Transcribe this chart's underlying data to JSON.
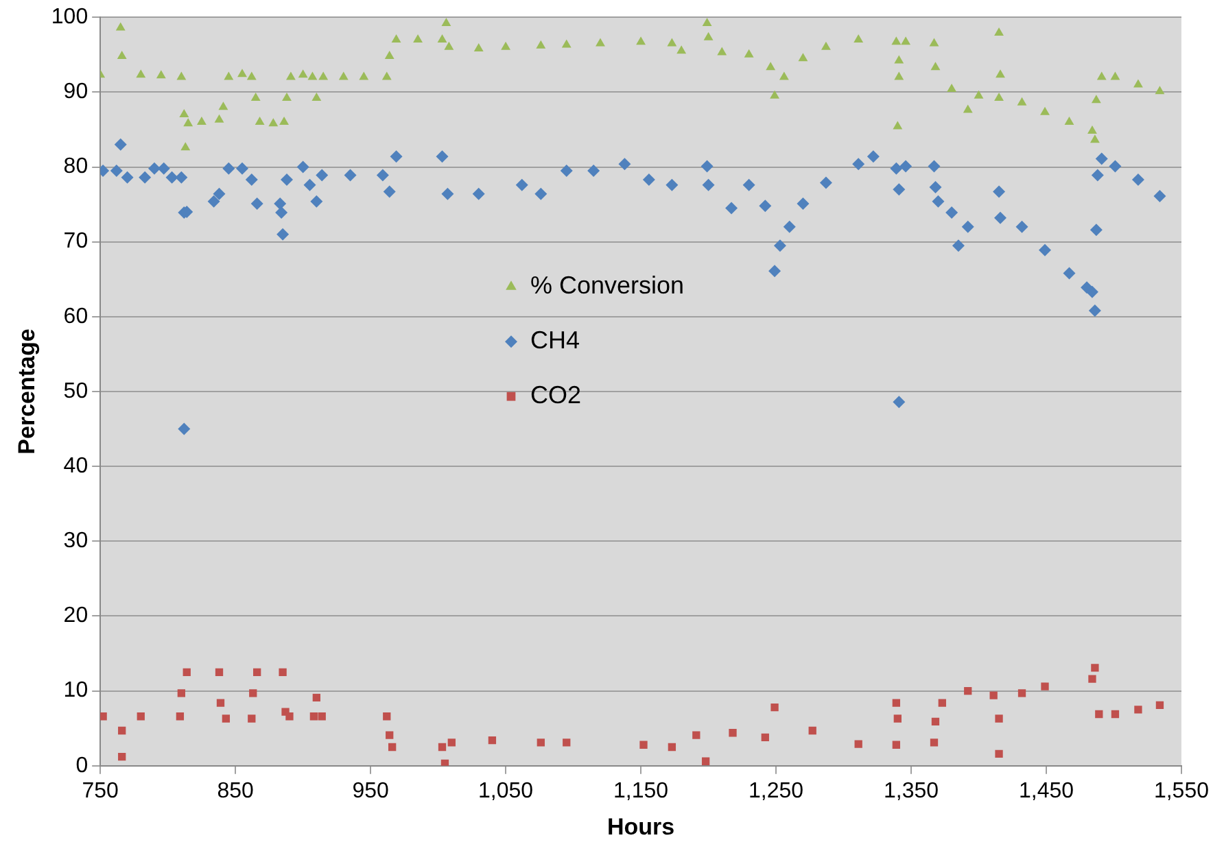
{
  "chart_data": {
    "type": "scatter",
    "xlabel": "Hours",
    "ylabel": "Percentage",
    "xlim": [
      750,
      1550
    ],
    "ylim": [
      0,
      100
    ],
    "xticks": [
      750,
      850,
      950,
      {
        "value": 1050,
        "label": "1,050"
      },
      {
        "value": 1150,
        "label": "1,150"
      },
      {
        "value": 1250,
        "label": "1,250"
      },
      {
        "value": 1350,
        "label": "1,350"
      },
      {
        "value": 1450,
        "label": "1,450"
      },
      {
        "value": 1550,
        "label": "1,550"
      }
    ],
    "yticks": [
      0,
      10,
      20,
      30,
      40,
      50,
      60,
      70,
      80,
      90,
      100
    ],
    "grid": "y",
    "legend": "center",
    "series": [
      {
        "name": "% Conversion",
        "color": "#9bbb59",
        "marker": "triangle",
        "x": [
          750,
          765,
          766,
          780,
          795,
          810,
          812,
          813,
          815,
          825,
          838,
          841,
          845,
          855,
          862,
          865,
          868,
          878,
          886,
          888,
          891,
          900,
          907,
          910,
          915,
          930,
          945,
          962,
          964,
          969,
          985,
          1003,
          1006,
          1008,
          1030,
          1050,
          1076,
          1095,
          1120,
          1150,
          1173,
          1180,
          1199,
          1200,
          1210,
          1230,
          1246,
          1249,
          1256,
          1270,
          1287,
          1311,
          1339,
          1341,
          1341,
          1340,
          1346,
          1367,
          1368,
          1380,
          1392,
          1400,
          1415,
          1415,
          1416,
          1432,
          1449,
          1467,
          1484,
          1486,
          1487,
          1491,
          1501,
          1518,
          1534
        ],
        "values": [
          92.3,
          98.6,
          94.8,
          92.3,
          92.2,
          92,
          87,
          82.6,
          85.8,
          86,
          86.3,
          88,
          92,
          92.4,
          92,
          89.2,
          86,
          85.8,
          86,
          89.2,
          92,
          92.3,
          92,
          89.2,
          92,
          92,
          92,
          92,
          94.8,
          97,
          97,
          97,
          99.2,
          96,
          95.8,
          96,
          96.2,
          96.3,
          96.5,
          96.7,
          96.5,
          95.5,
          99.2,
          97.3,
          95.3,
          95,
          93.3,
          89.5,
          92,
          94.5,
          96,
          97,
          96.7,
          94.2,
          92,
          85.4,
          96.7,
          96.5,
          93.3,
          90.4,
          87.6,
          89.5,
          89.2,
          97.9,
          92.3,
          88.6,
          87.3,
          86,
          84.8,
          83.6,
          88.9,
          92,
          92,
          91,
          90.1
        ]
      },
      {
        "name": "CH4",
        "color": "#4f81bd",
        "marker": "diamond",
        "x": [
          752,
          762,
          765,
          770,
          783,
          790,
          797,
          803,
          810,
          812,
          812,
          814,
          834,
          838,
          845,
          855,
          862,
          866,
          883,
          884,
          885,
          888,
          900,
          905,
          910,
          914,
          935,
          959,
          964,
          969,
          1003,
          1007,
          1030,
          1062,
          1076,
          1095,
          1115,
          1138,
          1156,
          1173,
          1199,
          1200,
          1217,
          1230,
          1242,
          1249,
          1253,
          1260,
          1270,
          1287,
          1311,
          1322,
          1339,
          1341,
          1341,
          1346,
          1367,
          1368,
          1370,
          1380,
          1385,
          1392,
          1415,
          1416,
          1432,
          1449,
          1467,
          1480,
          1484,
          1486,
          1487,
          1488,
          1491,
          1501,
          1518,
          1534
        ],
        "values": [
          79.5,
          79.5,
          83,
          78.6,
          78.6,
          79.8,
          79.8,
          78.6,
          78.6,
          73.9,
          45,
          74,
          75.4,
          76.4,
          79.8,
          79.8,
          78.3,
          75.1,
          75.1,
          73.9,
          71,
          78.3,
          80,
          77.6,
          75.4,
          78.9,
          78.9,
          78.9,
          76.7,
          81.4,
          81.4,
          76.4,
          76.4,
          77.6,
          76.4,
          79.5,
          79.5,
          80.4,
          78.3,
          77.6,
          80.1,
          77.6,
          74.5,
          77.6,
          74.8,
          66.1,
          69.5,
          72,
          75.1,
          77.9,
          80.4,
          81.4,
          79.8,
          77,
          48.6,
          80.1,
          80.1,
          77.3,
          75.4,
          73.9,
          69.5,
          72,
          76.7,
          73.2,
          72,
          68.9,
          65.8,
          63.9,
          63.3,
          60.8,
          71.6,
          78.9,
          81.1,
          80.1,
          78.3,
          76.1
        ]
      },
      {
        "name": "CO2",
        "color": "#c0504d",
        "marker": "square",
        "x": [
          752,
          766,
          766,
          780,
          809,
          810,
          814,
          838,
          839,
          843,
          862,
          863,
          866,
          885,
          887,
          890,
          908,
          910,
          914,
          962,
          964,
          966,
          1003,
          1005,
          1010,
          1040,
          1076,
          1095,
          1152,
          1173,
          1191,
          1198,
          1218,
          1242,
          1249,
          1277,
          1311,
          1339,
          1339,
          1340,
          1367,
          1368,
          1373,
          1392,
          1411,
          1415,
          1415,
          1432,
          1449,
          1484,
          1486,
          1489,
          1501,
          1518,
          1534
        ],
        "values": [
          6.6,
          4.7,
          1.2,
          6.6,
          6.6,
          9.7,
          12.5,
          12.5,
          8.4,
          6.3,
          6.3,
          9.7,
          12.5,
          12.5,
          7.2,
          6.6,
          6.6,
          9.1,
          6.6,
          6.6,
          4.1,
          2.5,
          2.5,
          0.3,
          3.1,
          3.4,
          3.1,
          3.1,
          2.8,
          2.5,
          4.1,
          0.6,
          4.4,
          3.8,
          7.8,
          4.7,
          2.9,
          2.8,
          8.4,
          6.3,
          3.1,
          5.9,
          8.4,
          10,
          9.4,
          6.3,
          1.6,
          9.7,
          10.6,
          11.6,
          13.1,
          6.9,
          6.9,
          7.5,
          8.1
        ]
      }
    ]
  }
}
